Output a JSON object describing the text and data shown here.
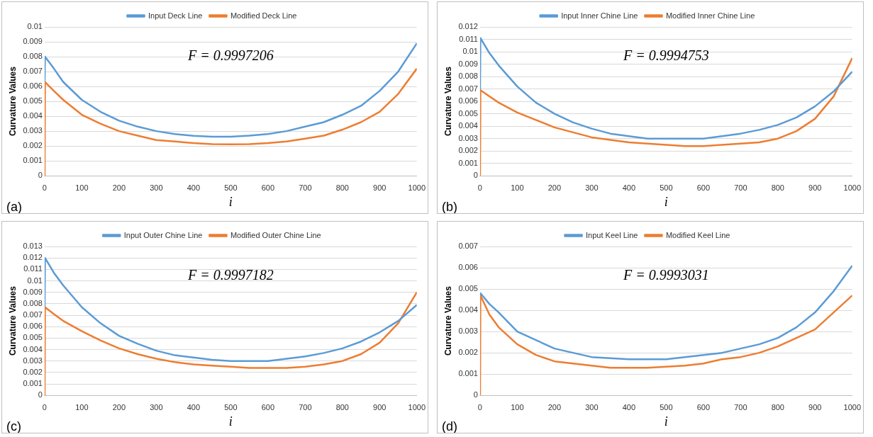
{
  "chart_data": [
    {
      "type": "line",
      "xlabel": "i",
      "ylabel": "Curvature Values",
      "annotations": [
        "F = 0.9997206",
        "(a)"
      ],
      "legend": "top",
      "grid": "y",
      "marker": "none",
      "line_style": "solid",
      "xlim": [
        0,
        1000
      ],
      "xticks": [
        0,
        100,
        200,
        300,
        400,
        500,
        600,
        700,
        800,
        900,
        1000
      ],
      "ylim": [
        0,
        0.01
      ],
      "yticks": [
        0,
        0.001,
        0.002,
        0.003,
        0.004,
        0.005,
        0.006,
        0.007,
        0.008,
        0.009,
        0.01
      ],
      "series": [
        {
          "name": "Input Deck Line",
          "color": "#5b9bd5",
          "x": [
            0,
            1,
            25,
            50,
            100,
            150,
            200,
            250,
            300,
            350,
            400,
            450,
            500,
            550,
            600,
            650,
            700,
            750,
            800,
            850,
            900,
            950,
            1000
          ],
          "values": [
            0.0063,
            0.008,
            0.0072,
            0.0063,
            0.0051,
            0.0043,
            0.0037,
            0.0033,
            0.003,
            0.0028,
            0.00268,
            0.00263,
            0.00263,
            0.0027,
            0.0028,
            0.003,
            0.0033,
            0.0036,
            0.0041,
            0.0047,
            0.0057,
            0.007,
            0.0089
          ]
        },
        {
          "name": "Modified Deck Line",
          "color": "#ed7d31",
          "x": [
            0,
            1,
            25,
            50,
            100,
            150,
            200,
            250,
            300,
            350,
            400,
            450,
            500,
            550,
            600,
            650,
            700,
            750,
            800,
            850,
            900,
            950,
            1000
          ],
          "values": [
            0,
            0.0063,
            0.0057,
            0.0051,
            0.0041,
            0.0035,
            0.003,
            0.0027,
            0.0024,
            0.0023,
            0.0022,
            0.00213,
            0.00212,
            0.00213,
            0.0022,
            0.0023,
            0.0025,
            0.0027,
            0.0031,
            0.0036,
            0.0043,
            0.0055,
            0.0072
          ]
        }
      ]
    },
    {
      "type": "line",
      "xlabel": "i",
      "ylabel": "Curvature Values",
      "annotations": [
        "F = 0.9994753",
        "(b)"
      ],
      "legend": "top",
      "grid": "y",
      "marker": "none",
      "line_style": "solid",
      "xlim": [
        0,
        1000
      ],
      "xticks": [
        0,
        100,
        200,
        300,
        400,
        500,
        600,
        700,
        800,
        900,
        1000
      ],
      "ylim": [
        0,
        0.012
      ],
      "yticks": [
        0,
        0.001,
        0.002,
        0.003,
        0.004,
        0.005,
        0.006,
        0.007,
        0.008,
        0.009,
        0.01,
        0.011,
        0.012
      ],
      "series": [
        {
          "name": "Input Inner Chine Line",
          "color": "#5b9bd5",
          "x": [
            0,
            1,
            25,
            50,
            100,
            150,
            200,
            250,
            300,
            350,
            400,
            450,
            500,
            550,
            600,
            650,
            700,
            750,
            800,
            850,
            900,
            950,
            1000
          ],
          "values": [
            0.0069,
            0.0111,
            0.0099,
            0.0089,
            0.0072,
            0.0059,
            0.005,
            0.0043,
            0.0038,
            0.0034,
            0.0032,
            0.003,
            0.003,
            0.003,
            0.003,
            0.0032,
            0.0034,
            0.0037,
            0.0041,
            0.0047,
            0.0056,
            0.0068,
            0.0084
          ]
        },
        {
          "name": "Modified Inner Chine Line",
          "color": "#ed7d31",
          "x": [
            0,
            1,
            25,
            50,
            100,
            150,
            200,
            250,
            300,
            350,
            400,
            450,
            500,
            550,
            600,
            650,
            700,
            750,
            800,
            850,
            900,
            950,
            1000
          ],
          "values": [
            0,
            0.0069,
            0.0064,
            0.0059,
            0.0051,
            0.0045,
            0.0039,
            0.0035,
            0.0031,
            0.0029,
            0.0027,
            0.0026,
            0.0025,
            0.0024,
            0.0024,
            0.0025,
            0.0026,
            0.0027,
            0.003,
            0.0036,
            0.0046,
            0.0064,
            0.0095
          ]
        }
      ]
    },
    {
      "type": "line",
      "xlabel": "i",
      "ylabel": "Curvature Values",
      "annotations": [
        "F = 0.9997182",
        "(c)"
      ],
      "legend": "top",
      "grid": "y",
      "marker": "none",
      "line_style": "solid",
      "xlim": [
        0,
        1000
      ],
      "xticks": [
        0,
        100,
        200,
        300,
        400,
        500,
        600,
        700,
        800,
        900,
        1000
      ],
      "ylim": [
        0,
        0.013
      ],
      "yticks": [
        0,
        0.001,
        0.002,
        0.003,
        0.004,
        0.005,
        0.006,
        0.007,
        0.008,
        0.009,
        0.01,
        0.011,
        0.012,
        0.013
      ],
      "series": [
        {
          "name": "Input Outer Chine Line",
          "color": "#5b9bd5",
          "x": [
            0,
            1,
            25,
            50,
            100,
            150,
            200,
            250,
            300,
            350,
            400,
            450,
            500,
            550,
            600,
            650,
            700,
            750,
            800,
            850,
            900,
            950,
            1000
          ],
          "values": [
            0.0077,
            0.012,
            0.0107,
            0.0096,
            0.0077,
            0.0063,
            0.0052,
            0.0045,
            0.0039,
            0.0035,
            0.0033,
            0.0031,
            0.003,
            0.003,
            0.003,
            0.0032,
            0.0034,
            0.0037,
            0.0041,
            0.0047,
            0.0055,
            0.0065,
            0.0079
          ]
        },
        {
          "name": "Modified Outer Chine Line",
          "color": "#ed7d31",
          "x": [
            0,
            1,
            25,
            50,
            100,
            150,
            200,
            250,
            300,
            350,
            400,
            450,
            500,
            550,
            600,
            650,
            700,
            750,
            800,
            850,
            900,
            950,
            1000
          ],
          "values": [
            0,
            0.0077,
            0.0071,
            0.0065,
            0.0056,
            0.0048,
            0.0041,
            0.0036,
            0.0032,
            0.0029,
            0.0027,
            0.0026,
            0.0025,
            0.0024,
            0.0024,
            0.0024,
            0.0025,
            0.0027,
            0.003,
            0.0036,
            0.0046,
            0.0063,
            0.009
          ]
        }
      ]
    },
    {
      "type": "line",
      "xlabel": "i",
      "ylabel": "Curvature Values",
      "annotations": [
        "F = 0.9993031",
        "(d)"
      ],
      "legend": "top",
      "grid": "y",
      "marker": "none",
      "line_style": "solid",
      "xlim": [
        0,
        1000
      ],
      "xticks": [
        0,
        100,
        200,
        300,
        400,
        500,
        600,
        700,
        800,
        900,
        1000
      ],
      "ylim": [
        0,
        0.007
      ],
      "yticks": [
        0,
        0.001,
        0.002,
        0.003,
        0.004,
        0.005,
        0.006,
        0.007
      ],
      "series": [
        {
          "name": "Input Keel Line",
          "color": "#5b9bd5",
          "x": [
            0,
            1,
            25,
            50,
            100,
            150,
            200,
            250,
            300,
            350,
            400,
            450,
            500,
            550,
            600,
            650,
            700,
            750,
            800,
            850,
            900,
            950,
            1000
          ],
          "values": [
            0.0047,
            0.0048,
            0.0043,
            0.0039,
            0.003,
            0.0026,
            0.0022,
            0.002,
            0.0018,
            0.00175,
            0.0017,
            0.0017,
            0.0017,
            0.0018,
            0.0019,
            0.002,
            0.0022,
            0.0024,
            0.0027,
            0.0032,
            0.0039,
            0.0049,
            0.0061
          ]
        },
        {
          "name": "Modified Keel Line",
          "color": "#ed7d31",
          "x": [
            0,
            1,
            25,
            50,
            100,
            150,
            200,
            250,
            300,
            350,
            400,
            450,
            500,
            550,
            600,
            650,
            700,
            750,
            800,
            850,
            900,
            950,
            1000
          ],
          "values": [
            0,
            0.0047,
            0.0038,
            0.0032,
            0.0024,
            0.0019,
            0.0016,
            0.0015,
            0.0014,
            0.0013,
            0.0013,
            0.0013,
            0.00135,
            0.0014,
            0.0015,
            0.0017,
            0.0018,
            0.002,
            0.0023,
            0.0027,
            0.0031,
            0.0039,
            0.0047
          ]
        }
      ]
    }
  ]
}
